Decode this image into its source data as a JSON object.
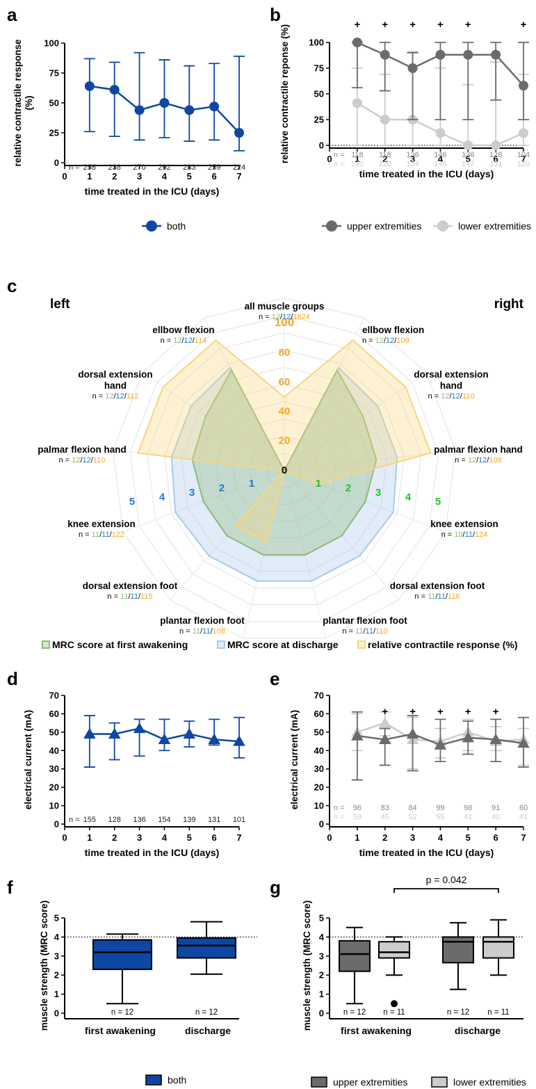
{
  "colors": {
    "blue": "#0d47a1",
    "dark_gray": "#6b6b6b",
    "light_gray": "#cccccc",
    "green": "#22c02a",
    "mid_blue": "#1f78d1",
    "orange": "#f5a623",
    "radar_green": "#8fb97a",
    "radar_blue": "#a9c9ea",
    "radar_yellow": "#f6d67e"
  },
  "chart_data": [
    {
      "id": "a",
      "panel_label": "a",
      "type": "line",
      "ylabel_lines": [
        "relative contractile response",
        "(%)"
      ],
      "xlabel": "time treated in the ICU (days)",
      "xlim": [
        0,
        7
      ],
      "ylim": [
        0,
        100
      ],
      "xticks": [
        "0",
        "1",
        "2",
        "3",
        "4",
        "5",
        "6",
        "7"
      ],
      "yticks": [
        "0",
        "25",
        "50",
        "75",
        "100"
      ],
      "x": [
        1,
        2,
        3,
        4,
        5,
        6,
        7
      ],
      "series": [
        {
          "name": "both",
          "values": [
            64,
            61,
            44,
            50,
            44,
            47,
            25
          ],
          "err_low": [
            26,
            22,
            19,
            21,
            18,
            19,
            10
          ],
          "err_high": [
            87,
            84,
            92,
            86,
            81,
            83,
            89
          ]
        }
      ],
      "n_prefix": "n =",
      "n_rows": [
        [
          "258",
          "238",
          "270",
          "292",
          "283",
          "259",
          "224"
        ]
      ],
      "legend": [
        "both"
      ]
    },
    {
      "id": "b",
      "panel_label": "b",
      "type": "line",
      "ylabel_lines": [
        "relative contractile reponse (%)"
      ],
      "xlabel": "time treated in the ICU (days)",
      "xlim": [
        0,
        7
      ],
      "ylim": [
        0,
        100
      ],
      "xticks": [
        "0",
        "1",
        "2",
        "3",
        "4",
        "5",
        "6",
        "7"
      ],
      "yticks": [
        "0",
        "25",
        "50",
        "75",
        "100"
      ],
      "x": [
        1,
        2,
        3,
        4,
        5,
        6,
        7
      ],
      "series": [
        {
          "name": "upper extremities",
          "values": [
            100,
            88,
            75,
            88,
            88,
            88,
            58
          ],
          "err_low": [
            56,
            53,
            25,
            25,
            25,
            44,
            25
          ],
          "err_high": [
            100,
            100,
            90,
            100,
            100,
            100,
            100
          ]
        },
        {
          "name": "lower extremities",
          "values": [
            41,
            25,
            25,
            12,
            0,
            0,
            12
          ],
          "err_low": [
            0,
            0,
            0,
            0,
            0,
            0,
            0
          ],
          "err_high": [
            75,
            69,
            91,
            75,
            59,
            81,
            69
          ]
        }
      ],
      "significance": "+",
      "significance_x": [
        1,
        2,
        3,
        4,
        5,
        7
      ],
      "n_prefix": "n =",
      "n_rows": [
        [
          "118",
          "118",
          "136",
          "146",
          "136",
          "128",
          "104"
        ],
        [
          "140",
          "120",
          "134",
          "146",
          "147",
          "131",
          "120"
        ]
      ],
      "legend": [
        "upper extremities",
        "lower extremities"
      ]
    },
    {
      "id": "c",
      "panel_label": "c",
      "type": "radar",
      "side_labels": [
        "left",
        "right"
      ],
      "axes": [
        {
          "label": [
            "all muscle groups"
          ],
          "n": [
            "12",
            "12",
            "1824"
          ]
        },
        {
          "label": [
            "ellbow flexion"
          ],
          "n": [
            "12",
            "12",
            "109"
          ]
        },
        {
          "label": [
            "dorsal extension",
            "hand"
          ],
          "n": [
            "12",
            "12",
            "110"
          ]
        },
        {
          "label": [
            "palmar flexion hand"
          ],
          "n": [
            "12",
            "12",
            "108"
          ]
        },
        {
          "label": [
            "knee extension"
          ],
          "n": [
            "10",
            "11",
            "124"
          ]
        },
        {
          "label": [
            "dorsal extension foot"
          ],
          "n": [
            "11",
            "11",
            "116"
          ]
        },
        {
          "label": [
            "plantar flexion foot"
          ],
          "n": [
            "11",
            "11",
            "110"
          ]
        },
        {
          "label": [
            "plantar flexion foot"
          ],
          "n": [
            "11",
            "11",
            "108"
          ]
        },
        {
          "label": [
            "dorsal extension foot"
          ],
          "n": [
            "11",
            "11",
            "115"
          ]
        },
        {
          "label": [
            "knee extension"
          ],
          "n": [
            "11",
            "11",
            "122"
          ]
        },
        {
          "label": [
            "palmar flexion hand"
          ],
          "n": [
            "12",
            "12",
            "110"
          ]
        },
        {
          "label": [
            "dorsal extension",
            "hand"
          ],
          "n": [
            "12",
            "12",
            "112"
          ]
        },
        {
          "label": [
            "ellbow flexion"
          ],
          "n": [
            "12",
            "12",
            "114"
          ]
        }
      ],
      "n_prefix": "n = ",
      "pct_ticks": [
        "0",
        "20",
        "40",
        "60",
        "80",
        "100"
      ],
      "mrc_ticks": [
        "1",
        "2",
        "3",
        "4",
        "5"
      ],
      "series": [
        {
          "name": "MRC score at first awakening",
          "values": [
            0,
            3.8,
            3.2,
            3.1,
            2.9,
            2.9,
            2.9,
            2.9,
            2.9,
            2.9,
            3.1,
            3.2,
            3.8
          ]
        },
        {
          "name": "MRC score at discharge",
          "values": [
            0,
            3.9,
            3.8,
            3.8,
            3.9,
            3.8,
            3.8,
            3.8,
            3.8,
            3.9,
            3.8,
            3.8,
            3.9
          ]
        },
        {
          "name": "relative contractile response (%)",
          "values": [
            50,
            100,
            100,
            100,
            25,
            0,
            0,
            50,
            50,
            0,
            100,
            100,
            100
          ]
        }
      ],
      "legend": [
        "MRC score at first awakening",
        "MRC score at discharge",
        "relative contractile response (%)"
      ]
    },
    {
      "id": "d",
      "panel_label": "d",
      "type": "line",
      "ylabel_lines": [
        "electrical current (mA)"
      ],
      "xlabel": "time treated in the ICU (days)",
      "xlim": [
        0,
        7
      ],
      "ylim": [
        0,
        70
      ],
      "xticks": [
        "0",
        "1",
        "2",
        "3",
        "4",
        "5",
        "6",
        "7"
      ],
      "yticks": [
        "0",
        "10",
        "20",
        "30",
        "40",
        "50",
        "60",
        "70"
      ],
      "x": [
        1,
        2,
        3,
        4,
        5,
        6,
        7
      ],
      "series": [
        {
          "name": "both",
          "values": [
            49,
            49,
            52,
            46,
            49,
            46,
            45
          ],
          "err_low": [
            31,
            35,
            37,
            40,
            42,
            43,
            36
          ],
          "err_high": [
            59,
            55,
            57,
            57,
            56,
            57,
            58
          ]
        }
      ],
      "n_prefix": "n =",
      "n_rows": [
        [
          "155",
          "128",
          "136",
          "154",
          "139",
          "131",
          "101"
        ]
      ]
    },
    {
      "id": "e",
      "panel_label": "e",
      "type": "line",
      "ylabel_lines": [
        "electrical current (mA)"
      ],
      "xlabel": "time treated in the ICU (days)",
      "xlim": [
        0,
        7
      ],
      "ylim": [
        0,
        70
      ],
      "xticks": [
        "0",
        "1",
        "2",
        "3",
        "4",
        "5",
        "6",
        "7"
      ],
      "yticks": [
        "0",
        "10",
        "20",
        "30",
        "40",
        "50",
        "60",
        "70"
      ],
      "x": [
        1,
        2,
        3,
        4,
        5,
        6,
        7
      ],
      "series": [
        {
          "name": "upper extremities",
          "values": [
            48,
            46,
            49,
            43,
            47,
            46,
            44
          ],
          "err_low": [
            24,
            32,
            29,
            34,
            38,
            34,
            31
          ],
          "err_high": [
            61,
            52,
            59,
            57,
            56,
            57,
            58
          ]
        },
        {
          "name": "lower extremities",
          "values": [
            50,
            55,
            46,
            45,
            50,
            45,
            46
          ],
          "err_low": [
            40,
            48,
            30,
            36,
            40,
            40,
            32
          ],
          "err_high": [
            60,
            61,
            58,
            52,
            57,
            53,
            52
          ]
        }
      ],
      "significance": "+",
      "significance_x": [
        2,
        3,
        4,
        5,
        6
      ],
      "n_prefix": "n =",
      "n_rows": [
        [
          "96",
          "83",
          "84",
          "99",
          "98",
          "91",
          "60"
        ],
        [
          "59",
          "45",
          "52",
          "55",
          "41",
          "40",
          "41"
        ]
      ]
    },
    {
      "id": "f",
      "panel_label": "f",
      "type": "box",
      "ylabel_lines": [
        "muscle strength (MRC score)"
      ],
      "ylim": [
        0,
        5
      ],
      "yticks": [
        "0",
        "1",
        "2",
        "3",
        "4",
        "5"
      ],
      "reference_line": 4,
      "categories": [
        "first awakening",
        "discharge"
      ],
      "boxes": [
        {
          "group": "first awakening",
          "series": "both",
          "min": 0.5,
          "q1": 2.3,
          "median": 3.2,
          "q3": 3.85,
          "max": 4.15,
          "n": "n = 12"
        },
        {
          "group": "discharge",
          "series": "both",
          "min": 2.05,
          "q1": 2.9,
          "median": 3.55,
          "q3": 3.95,
          "max": 4.8,
          "n": "n = 12"
        }
      ],
      "legend": [
        "both"
      ]
    },
    {
      "id": "g",
      "panel_label": "g",
      "type": "box",
      "ylabel_lines": [
        "muscle strength (MRC score)"
      ],
      "ylim": [
        0,
        5
      ],
      "yticks": [
        "0",
        "1",
        "2",
        "3",
        "4",
        "5"
      ],
      "reference_line": 4,
      "categories": [
        "first awakening",
        "discharge"
      ],
      "p_value": "p = 0.042",
      "boxes": [
        {
          "group": "first awakening",
          "series": "upper extremities",
          "min": 0.5,
          "q1": 2.2,
          "median": 3.1,
          "q3": 3.8,
          "max": 4.5,
          "n": "n = 12"
        },
        {
          "group": "first awakening",
          "series": "lower extremities",
          "min": 2.0,
          "q1": 2.9,
          "median": 3.2,
          "q3": 3.75,
          "max": 4.0,
          "n": "n = 11",
          "outliers": [
            0.5
          ]
        },
        {
          "group": "discharge",
          "series": "upper extremities",
          "min": 1.25,
          "q1": 2.65,
          "median": 3.75,
          "q3": 4.0,
          "max": 4.75,
          "n": "n = 12"
        },
        {
          "group": "discharge",
          "series": "lower extremities",
          "min": 2.0,
          "q1": 2.9,
          "median": 3.75,
          "q3": 4.0,
          "max": 4.9,
          "n": "n = 11"
        }
      ],
      "legend": [
        "upper extremities",
        "lower extremities"
      ]
    }
  ]
}
